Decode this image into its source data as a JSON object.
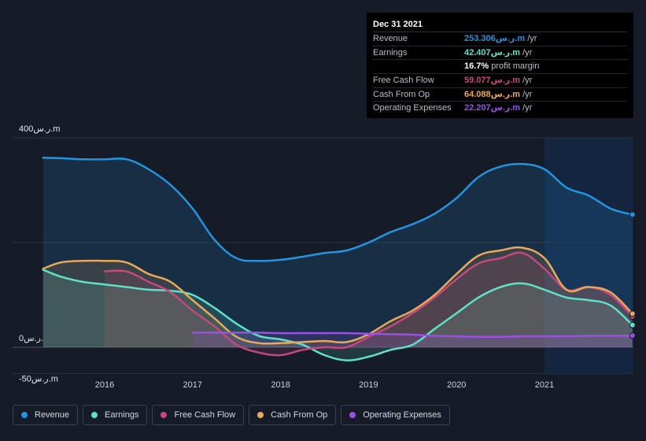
{
  "chart_data": {
    "type": "area",
    "x": [
      2015.3,
      2015.5,
      2015.75,
      2016.0,
      2016.25,
      2016.5,
      2016.75,
      2017.0,
      2017.25,
      2017.5,
      2017.75,
      2018.0,
      2018.25,
      2018.5,
      2018.75,
      2019.0,
      2019.25,
      2019.5,
      2019.75,
      2020.0,
      2020.25,
      2020.5,
      2020.75,
      2021.0,
      2021.25,
      2021.5,
      2021.75,
      2022.0
    ],
    "series": [
      {
        "name": "Revenue",
        "color": "#2394df",
        "values": [
          362,
          361,
          359,
          359,
          359,
          340,
          310,
          265,
          205,
          170,
          165,
          167,
          173,
          180,
          185,
          200,
          220,
          235,
          255,
          285,
          325,
          345,
          350,
          340,
          305,
          290,
          265,
          253.3
        ]
      },
      {
        "name": "Earnings",
        "color": "#5fe0c8",
        "values": [
          148,
          135,
          125,
          120,
          115,
          110,
          108,
          100,
          75,
          45,
          22,
          15,
          5,
          -15,
          -25,
          -18,
          -5,
          5,
          35,
          65,
          95,
          115,
          122,
          110,
          95,
          90,
          80,
          42.4
        ]
      },
      {
        "name": "Free Cash Flow",
        "color": "#c4487e",
        "values": [
          null,
          null,
          null,
          145,
          145,
          125,
          105,
          70,
          40,
          5,
          -10,
          -15,
          -5,
          0,
          0,
          20,
          40,
          65,
          95,
          130,
          160,
          170,
          180,
          150,
          110,
          115,
          100,
          59.1
        ]
      },
      {
        "name": "Cash From Op",
        "color": "#e8a95a",
        "values": [
          150,
          162,
          165,
          165,
          162,
          140,
          125,
          90,
          55,
          20,
          8,
          8,
          10,
          12,
          10,
          25,
          50,
          70,
          100,
          140,
          175,
          185,
          190,
          170,
          110,
          115,
          105,
          64.1
        ]
      },
      {
        "name": "Operating Expenses",
        "color": "#9b4ee8",
        "values": [
          null,
          null,
          null,
          null,
          null,
          null,
          null,
          28,
          28,
          28,
          28,
          27,
          27,
          27,
          27,
          26,
          25,
          24,
          22,
          21,
          20,
          20,
          21,
          21,
          21,
          22,
          22,
          22.2
        ]
      }
    ],
    "ylim": [
      -50,
      400
    ],
    "y_labels": [
      "400ر.س.m",
      "0ر.س.",
      "-50ر.س.m"
    ],
    "y_label_values": [
      400,
      0,
      -50
    ],
    "x_ticks": [
      2016,
      2017,
      2018,
      2019,
      2020,
      2021
    ],
    "x_tick_labels": [
      "2016",
      "2017",
      "2018",
      "2019",
      "2020",
      "2021"
    ],
    "xlim": [
      2015,
      2022
    ],
    "highlight_start": 2021.0,
    "grid": true,
    "legend_position": "bottom-left"
  },
  "tooltip": {
    "date": "Dec 31 2021",
    "rows": [
      {
        "name": "Revenue",
        "value": "253.306ر.س.m",
        "unit": "/yr",
        "color": "#2394df"
      },
      {
        "name": "Earnings",
        "value": "42.407ر.س.m",
        "unit": "/yr",
        "color": "#5fe0c8"
      },
      {
        "name": "",
        "value": "16.7%",
        "unit": "profit margin",
        "color": "#ffffff"
      },
      {
        "name": "Free Cash Flow",
        "value": "59.077ر.س.m",
        "unit": "/yr",
        "color": "#c4487e"
      },
      {
        "name": "Cash From Op",
        "value": "64.088ر.س.m",
        "unit": "/yr",
        "color": "#e8a95a"
      },
      {
        "name": "Operating Expenses",
        "value": "22.207ر.س.m",
        "unit": "/yr",
        "color": "#9b4ee8"
      }
    ]
  },
  "legend": [
    {
      "label": "Revenue",
      "color": "#2394df"
    },
    {
      "label": "Earnings",
      "color": "#5fe0c8"
    },
    {
      "label": "Free Cash Flow",
      "color": "#c4487e"
    },
    {
      "label": "Cash From Op",
      "color": "#e8a95a"
    },
    {
      "label": "Operating Expenses",
      "color": "#9b4ee8"
    }
  ]
}
